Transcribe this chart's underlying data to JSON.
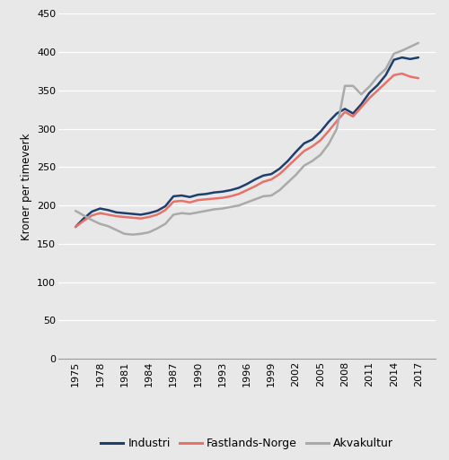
{
  "years": [
    1975,
    1976,
    1977,
    1978,
    1979,
    1980,
    1981,
    1982,
    1983,
    1984,
    1985,
    1986,
    1987,
    1988,
    1989,
    1990,
    1991,
    1992,
    1993,
    1994,
    1995,
    1996,
    1997,
    1998,
    1999,
    2000,
    2001,
    2002,
    2003,
    2004,
    2005,
    2006,
    2007,
    2008,
    2009,
    2010,
    2011,
    2012,
    2013,
    2014,
    2015,
    2016,
    2017
  ],
  "industri": [
    172,
    183,
    192,
    196,
    194,
    191,
    190,
    189,
    188,
    190,
    193,
    199,
    212,
    213,
    211,
    214,
    215,
    217,
    218,
    220,
    223,
    228,
    234,
    239,
    241,
    248,
    258,
    270,
    281,
    286,
    296,
    309,
    320,
    326,
    320,
    332,
    347,
    357,
    370,
    390,
    393,
    391,
    393
  ],
  "fastlands_norge": [
    172,
    180,
    187,
    190,
    188,
    186,
    185,
    184,
    183,
    185,
    188,
    194,
    205,
    206,
    204,
    207,
    208,
    209,
    210,
    212,
    215,
    220,
    225,
    231,
    234,
    241,
    251,
    261,
    271,
    277,
    285,
    297,
    310,
    322,
    316,
    328,
    340,
    350,
    360,
    370,
    372,
    368,
    366
  ],
  "akvakultur": [
    193,
    187,
    181,
    176,
    173,
    168,
    163,
    162,
    163,
    165,
    170,
    176,
    188,
    190,
    189,
    191,
    193,
    195,
    196,
    198,
    200,
    204,
    208,
    212,
    213,
    220,
    230,
    240,
    252,
    258,
    266,
    280,
    300,
    356,
    356,
    345,
    355,
    368,
    378,
    398,
    402,
    407,
    412
  ],
  "ylabel": "Kroner per timeverk",
  "ylim": [
    0,
    450
  ],
  "yticks": [
    0,
    50,
    100,
    150,
    200,
    250,
    300,
    350,
    400,
    450
  ],
  "xticks": [
    1975,
    1978,
    1981,
    1984,
    1987,
    1990,
    1993,
    1996,
    1999,
    2002,
    2005,
    2008,
    2011,
    2014,
    2017
  ],
  "legend_labels": [
    "Industri",
    "Fastlands-Norge",
    "Akvakultur"
  ],
  "colors": [
    "#1c3f6e",
    "#e8726a",
    "#aaaaaa"
  ],
  "line_width": 1.8,
  "background_color": "#e8e8e8",
  "plot_bg_color": "#e8e8e8"
}
